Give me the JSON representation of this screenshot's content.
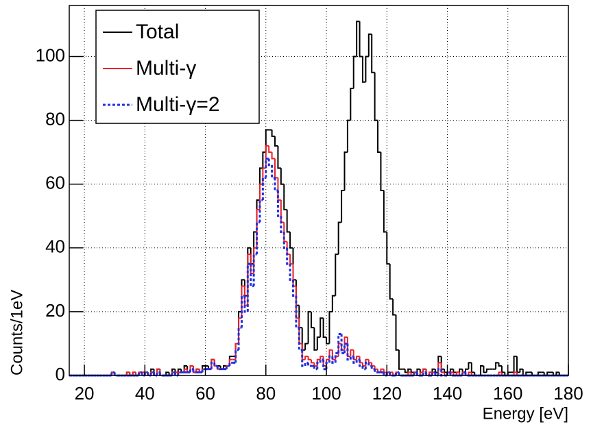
{
  "chart_data": {
    "type": "histogram",
    "x_label": "Energy [eV]",
    "y_label": "Counts/1eV",
    "xlim": [
      15,
      180
    ],
    "ylim": [
      0,
      116
    ],
    "xticks": [
      20,
      40,
      60,
      80,
      100,
      120,
      140,
      160,
      180
    ],
    "yticks": [
      0,
      20,
      40,
      60,
      80,
      100
    ],
    "grid": true,
    "legend": "upper left",
    "bins": [
      15,
      16,
      17,
      18,
      19,
      20,
      21,
      22,
      23,
      24,
      25,
      26,
      27,
      28,
      29,
      30,
      31,
      32,
      33,
      34,
      35,
      36,
      37,
      38,
      39,
      40,
      41,
      42,
      43,
      44,
      45,
      46,
      47,
      48,
      49,
      50,
      51,
      52,
      53,
      54,
      55,
      56,
      57,
      58,
      59,
      60,
      61,
      62,
      63,
      64,
      65,
      66,
      67,
      68,
      69,
      70,
      71,
      72,
      73,
      74,
      75,
      76,
      77,
      78,
      79,
      80,
      81,
      82,
      83,
      84,
      85,
      86,
      87,
      88,
      89,
      90,
      91,
      92,
      93,
      94,
      95,
      96,
      97,
      98,
      99,
      100,
      101,
      102,
      103,
      104,
      105,
      106,
      107,
      108,
      109,
      110,
      111,
      112,
      113,
      114,
      115,
      116,
      117,
      118,
      119,
      120,
      121,
      122,
      123,
      124,
      125,
      126,
      127,
      128,
      129,
      130,
      131,
      132,
      133,
      134,
      135,
      136,
      137,
      138,
      139,
      140,
      141,
      142,
      143,
      144,
      145,
      146,
      147,
      148,
      149,
      150,
      151,
      152,
      153,
      154,
      155,
      156,
      157,
      158,
      159,
      160,
      161,
      162,
      163,
      164,
      165,
      166,
      167,
      168,
      169,
      170,
      171,
      172,
      173,
      174,
      175,
      176,
      177,
      178,
      179,
      180
    ],
    "series": [
      {
        "name": "Total",
        "color": "#000000",
        "dash": "solid",
        "values": [
          0,
          0,
          0,
          0,
          0,
          0,
          0,
          0,
          0,
          0,
          0,
          0,
          0,
          0,
          1,
          0,
          0,
          0,
          0,
          1,
          0,
          1,
          0,
          1,
          1,
          1,
          0,
          2,
          0,
          2,
          0,
          0,
          1,
          0,
          2,
          1,
          2,
          1,
          3,
          1,
          3,
          1,
          2,
          1,
          3,
          3,
          2,
          5,
          3,
          3,
          2,
          3,
          3,
          6,
          6,
          10,
          20,
          30,
          25,
          40,
          35,
          45,
          55,
          65,
          70,
          77,
          77,
          75,
          72,
          65,
          60,
          52,
          45,
          40,
          30,
          22,
          15,
          8,
          10,
          20,
          15,
          8,
          12,
          18,
          12,
          10,
          20,
          25,
          38,
          48,
          58,
          70,
          80,
          90,
          100,
          111,
          100,
          92,
          100,
          107,
          95,
          80,
          70,
          58,
          45,
          35,
          24,
          19,
          8,
          2,
          2,
          1,
          2,
          1,
          1,
          2,
          1,
          2,
          0,
          1,
          2,
          1,
          6,
          2,
          1,
          1,
          2,
          1,
          1,
          2,
          1,
          2,
          4,
          1,
          0,
          0,
          3,
          1,
          2,
          2,
          2,
          4,
          3,
          1,
          0,
          1,
          1,
          6,
          1,
          2,
          0,
          1,
          1,
          0,
          0,
          1,
          1,
          0,
          1,
          1,
          0,
          1,
          0,
          0,
          0
        ]
      },
      {
        "name": "Multi-γ",
        "color": "#e8202a",
        "dash": "solid",
        "values": [
          0,
          0,
          0,
          0,
          0,
          0,
          0,
          0,
          0,
          0,
          0,
          0,
          0,
          0,
          1,
          0,
          0,
          0,
          0,
          1,
          0,
          1,
          0,
          1,
          1,
          1,
          0,
          1,
          0,
          2,
          0,
          0,
          0,
          0,
          1,
          1,
          1,
          1,
          2,
          1,
          3,
          1,
          2,
          1,
          2,
          2,
          2,
          5,
          3,
          2,
          2,
          2,
          3,
          5,
          5,
          10,
          18,
          28,
          22,
          38,
          32,
          40,
          52,
          60,
          65,
          72,
          70,
          68,
          62,
          55,
          48,
          42,
          38,
          35,
          28,
          18,
          10,
          5,
          6,
          5,
          4,
          3,
          5,
          6,
          3,
          5,
          8,
          5,
          6,
          10,
          8,
          12,
          6,
          8,
          5,
          6,
          4,
          3,
          5,
          4,
          3,
          2,
          1,
          2,
          1,
          1,
          1,
          0,
          1,
          0,
          0,
          0,
          1,
          0,
          1,
          0,
          1,
          2,
          0,
          1,
          1,
          0,
          4,
          1,
          0,
          1,
          1,
          0,
          1,
          0,
          1,
          0,
          1,
          0,
          0,
          0,
          0,
          0,
          0,
          0,
          0,
          0,
          1,
          0,
          0,
          0,
          0,
          1,
          0,
          0,
          0,
          0,
          0,
          0,
          0,
          0,
          0,
          0,
          0,
          0,
          0,
          0,
          0,
          0,
          0
        ]
      },
      {
        "name": "Multi-γ=2",
        "color": "#1f2fe0",
        "dash": "dotted",
        "values": [
          0,
          0,
          0,
          0,
          0,
          0,
          0,
          0,
          0,
          0,
          0,
          0,
          0,
          0,
          1,
          0,
          0,
          0,
          0,
          0,
          0,
          0,
          0,
          1,
          0,
          1,
          0,
          1,
          0,
          1,
          0,
          0,
          0,
          0,
          1,
          0,
          1,
          1,
          1,
          1,
          2,
          1,
          1,
          1,
          2,
          2,
          2,
          4,
          3,
          2,
          2,
          2,
          3,
          4,
          4,
          8,
          15,
          25,
          20,
          35,
          28,
          38,
          48,
          55,
          62,
          68,
          66,
          62,
          58,
          50,
          45,
          40,
          35,
          30,
          25,
          15,
          8,
          3,
          4,
          3,
          3,
          2,
          4,
          5,
          2,
          4,
          6,
          4,
          7,
          13,
          7,
          10,
          5,
          6,
          4,
          5,
          3,
          2,
          4,
          3,
          2,
          1,
          1,
          1,
          0,
          1,
          0,
          0,
          1,
          0,
          0,
          0,
          0,
          0,
          1,
          0,
          0,
          1,
          0,
          0,
          1,
          0,
          2,
          0,
          0,
          1,
          0,
          0,
          0,
          0,
          1,
          0,
          0,
          0,
          0,
          0,
          0,
          0,
          0,
          0,
          0,
          0,
          0,
          0,
          0,
          0,
          0,
          0,
          0,
          0,
          0,
          0,
          0,
          0,
          0,
          0,
          0,
          0,
          0,
          0,
          0,
          0,
          0,
          0,
          0
        ]
      }
    ]
  }
}
